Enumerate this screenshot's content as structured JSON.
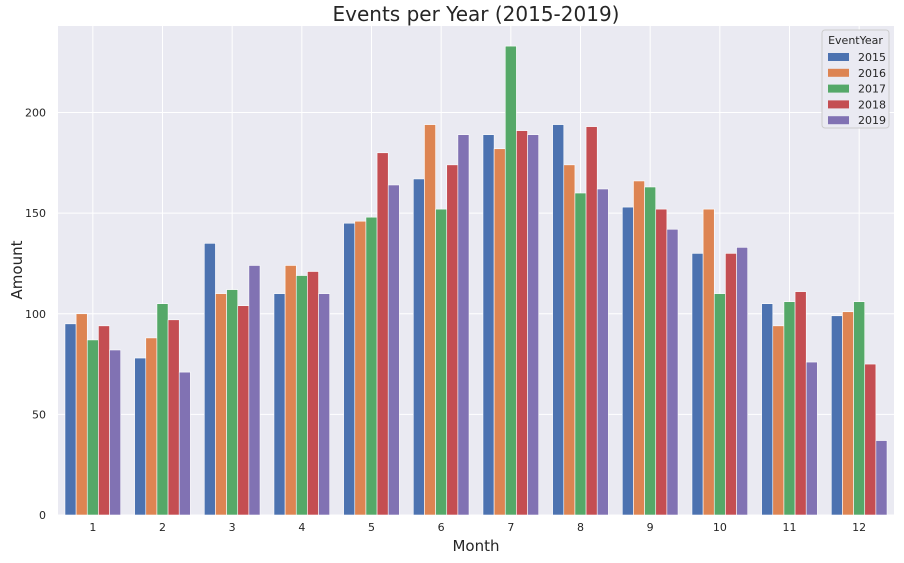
{
  "chart_data": {
    "type": "bar",
    "title": "Events per Year (2015-2019)",
    "xlabel": "Month",
    "ylabel": "Amount",
    "categories": [
      "1",
      "2",
      "3",
      "4",
      "5",
      "6",
      "7",
      "8",
      "9",
      "10",
      "11",
      "12"
    ],
    "ylim": [
      0,
      243
    ],
    "yticks": [
      0,
      50,
      100,
      150,
      200
    ],
    "grid": true,
    "legend": {
      "title": "EventYear",
      "placement": "top-right"
    },
    "series": [
      {
        "name": "2015",
        "color": "#4c72b0",
        "values": [
          95,
          78,
          135,
          110,
          145,
          167,
          189,
          194,
          153,
          130,
          105,
          99
        ]
      },
      {
        "name": "2016",
        "color": "#dd8452",
        "values": [
          100,
          88,
          110,
          124,
          146,
          194,
          182,
          174,
          166,
          152,
          94,
          101
        ]
      },
      {
        "name": "2017",
        "color": "#55a868",
        "values": [
          87,
          105,
          112,
          119,
          148,
          152,
          233,
          160,
          163,
          110,
          106,
          106
        ]
      },
      {
        "name": "2018",
        "color": "#c44e52",
        "values": [
          94,
          97,
          104,
          121,
          180,
          174,
          191,
          193,
          152,
          130,
          111,
          75
        ]
      },
      {
        "name": "2019",
        "color": "#8172b3",
        "values": [
          82,
          71,
          124,
          110,
          164,
          189,
          189,
          162,
          142,
          133,
          76,
          37
        ]
      }
    ]
  }
}
